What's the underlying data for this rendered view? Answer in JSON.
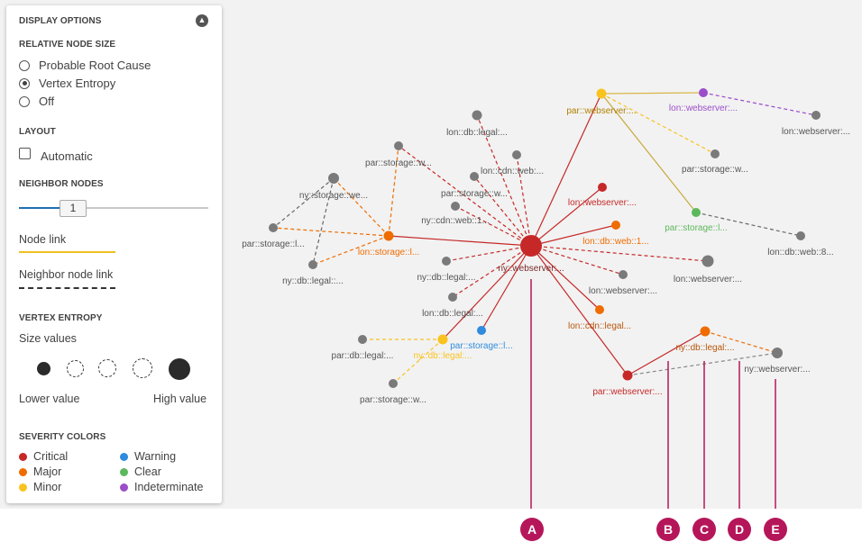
{
  "panel": {
    "title": "DISPLAY OPTIONS",
    "relative_node_size": {
      "heading": "RELATIVE NODE SIZE",
      "options": [
        "Probable Root Cause",
        "Vertex Entropy",
        "Off"
      ],
      "selected": "Vertex Entropy"
    },
    "layout": {
      "heading": "LAYOUT",
      "automatic_label": "Automatic",
      "automatic_checked": false
    },
    "neighbor_nodes": {
      "heading": "NEIGHBOR NODES",
      "value": "1"
    },
    "links": {
      "node_link": "Node link",
      "neighbor_node_link": "Neighbor node link"
    },
    "vertex_entropy": {
      "heading": "VERTEX ENTROPY",
      "size_values": "Size values",
      "lower": "Lower value",
      "higher": "High value"
    },
    "severity": {
      "heading": "SEVERITY COLORS",
      "items": [
        {
          "label": "Critical",
          "color": "#c62828"
        },
        {
          "label": "Major",
          "color": "#ef6c00"
        },
        {
          "label": "Minor",
          "color": "#f9c31f"
        },
        {
          "label": "Warning",
          "color": "#2f8bde"
        },
        {
          "label": "Clear",
          "color": "#5cb85c"
        },
        {
          "label": "Indeterminate",
          "color": "#9b4dca"
        }
      ]
    }
  },
  "markers": [
    "A",
    "B",
    "C",
    "D",
    "E"
  ],
  "graph": {
    "nodes": [
      {
        "id": "ny_web",
        "label": "ny::webserver:...",
        "sev": "critical"
      },
      {
        "id": "lon_db_legal_top",
        "label": "lon::db::legal:...",
        "sev": "gray"
      },
      {
        "id": "lon_cdn_web",
        "label": "lon::cdn::web:...",
        "sev": "gray"
      },
      {
        "id": "par_storage_top",
        "label": "par::storage::w...",
        "sev": "gray"
      },
      {
        "id": "par_storage_mid",
        "label": "par::storage::w...",
        "sev": "gray"
      },
      {
        "id": "ny_storage_we",
        "label": "ny::storage::we...",
        "sev": "gray"
      },
      {
        "id": "ny_cdn_web",
        "label": "ny::cdn::web::1...",
        "sev": "gray"
      },
      {
        "id": "par_storage_l",
        "label": "par::storage::l...",
        "sev": "gray"
      },
      {
        "id": "lon_storage_l",
        "label": "lon::storage::l...",
        "sev": "major"
      },
      {
        "id": "ny_db_legal",
        "label": "ny::db::legal::...",
        "sev": "gray"
      },
      {
        "id": "ny_db_legal2",
        "label": "ny::db::legal:...",
        "sev": "gray"
      },
      {
        "id": "lon_db_legal_mid",
        "label": "lon::db::legal:...",
        "sev": "gray"
      },
      {
        "id": "par_db_legal",
        "label": "par::db::legal:...",
        "sev": "gray"
      },
      {
        "id": "ny_db_legal_minor",
        "label": "ny::db::legal:...",
        "sev": "minor"
      },
      {
        "id": "par_storage_w_bottom",
        "label": "par::storage::w...",
        "sev": "gray"
      },
      {
        "id": "par_storage_l_warn",
        "label": "par::storage::l...",
        "sev": "warning"
      },
      {
        "id": "par_web_minor",
        "label": "par::webserver:...",
        "sev": "minor"
      },
      {
        "id": "lon_web_indet",
        "label": "lon::webserver:...",
        "sev": "indeterminate"
      },
      {
        "id": "lon_web_right",
        "label": "lon::webserver:...",
        "sev": "gray"
      },
      {
        "id": "par_storage_w_r",
        "label": "par::storage::w...",
        "sev": "gray"
      },
      {
        "id": "par_storage_clear",
        "label": "par::storage::l...",
        "sev": "clear"
      },
      {
        "id": "lon_db_web8",
        "label": "lon::db::web::8...",
        "sev": "gray"
      },
      {
        "id": "lon_web_crit",
        "label": "lon::webserver:...",
        "sev": "critical"
      },
      {
        "id": "lon_db_web1",
        "label": "lon::db::web::1...",
        "sev": "major"
      },
      {
        "id": "lon_web_big",
        "label": "lon::webserver:...",
        "sev": "gray"
      },
      {
        "id": "lon_web_gray",
        "label": "lon::webserver:...",
        "sev": "gray"
      },
      {
        "id": "lon_cdn_legal",
        "label": "lon::cdn::legal...",
        "sev": "major"
      },
      {
        "id": "par_web_crit",
        "label": "par::webserver:...",
        "sev": "critical"
      },
      {
        "id": "ny_db_legal_major",
        "label": "ny::db::legal:...",
        "sev": "major"
      },
      {
        "id": "ny_web_right",
        "label": "ny::webserver:...",
        "sev": "gray"
      }
    ]
  },
  "colors": {
    "critical": "#c62828",
    "major": "#ef6c00",
    "minor": "#f9c31f",
    "warning": "#2f8bde",
    "clear": "#5cb85c",
    "indeterminate": "#9b4dca",
    "gray": "#7a7a7a",
    "marker": "#b5165a"
  }
}
